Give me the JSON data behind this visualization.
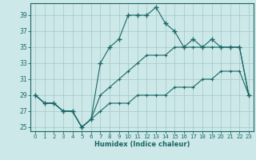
{
  "xlabel": "Humidex (Indice chaleur)",
  "bg_color": "#cde8e8",
  "grid_color": "#a8cccc",
  "line_color": "#1a6666",
  "xlim": [
    -0.5,
    23.5
  ],
  "ylim": [
    24.5,
    40.5
  ],
  "xticks": [
    0,
    1,
    2,
    3,
    4,
    5,
    6,
    7,
    8,
    9,
    10,
    11,
    12,
    13,
    14,
    15,
    16,
    17,
    18,
    19,
    20,
    21,
    22,
    23
  ],
  "yticks": [
    25,
    27,
    29,
    31,
    33,
    35,
    37,
    39
  ],
  "line1_x": [
    0,
    1,
    2,
    3,
    4,
    5,
    6,
    7,
    8,
    9,
    10,
    11,
    12,
    13,
    14,
    15,
    16,
    17,
    18,
    19,
    20,
    21,
    22,
    23
  ],
  "line1_y": [
    29,
    28,
    28,
    27,
    27,
    25,
    26,
    33,
    35,
    36,
    39,
    39,
    39,
    40,
    38,
    37,
    35,
    36,
    35,
    36,
    35,
    35,
    35,
    29
  ],
  "line2_x": [
    0,
    1,
    2,
    3,
    4,
    5,
    6,
    7,
    8,
    9,
    10,
    11,
    12,
    13,
    14,
    15,
    16,
    17,
    18,
    19,
    20,
    21,
    22,
    23
  ],
  "line2_y": [
    29,
    28,
    28,
    27,
    27,
    25,
    26,
    29,
    30,
    31,
    32,
    33,
    34,
    34,
    34,
    35,
    35,
    35,
    35,
    35,
    35,
    35,
    35,
    29
  ],
  "line3_x": [
    0,
    1,
    2,
    3,
    4,
    5,
    6,
    7,
    8,
    9,
    10,
    11,
    12,
    13,
    14,
    15,
    16,
    17,
    18,
    19,
    20,
    21,
    22,
    23
  ],
  "line3_y": [
    29,
    28,
    28,
    27,
    27,
    25,
    26,
    27,
    28,
    28,
    28,
    29,
    29,
    29,
    29,
    30,
    30,
    30,
    31,
    31,
    32,
    32,
    32,
    29
  ]
}
